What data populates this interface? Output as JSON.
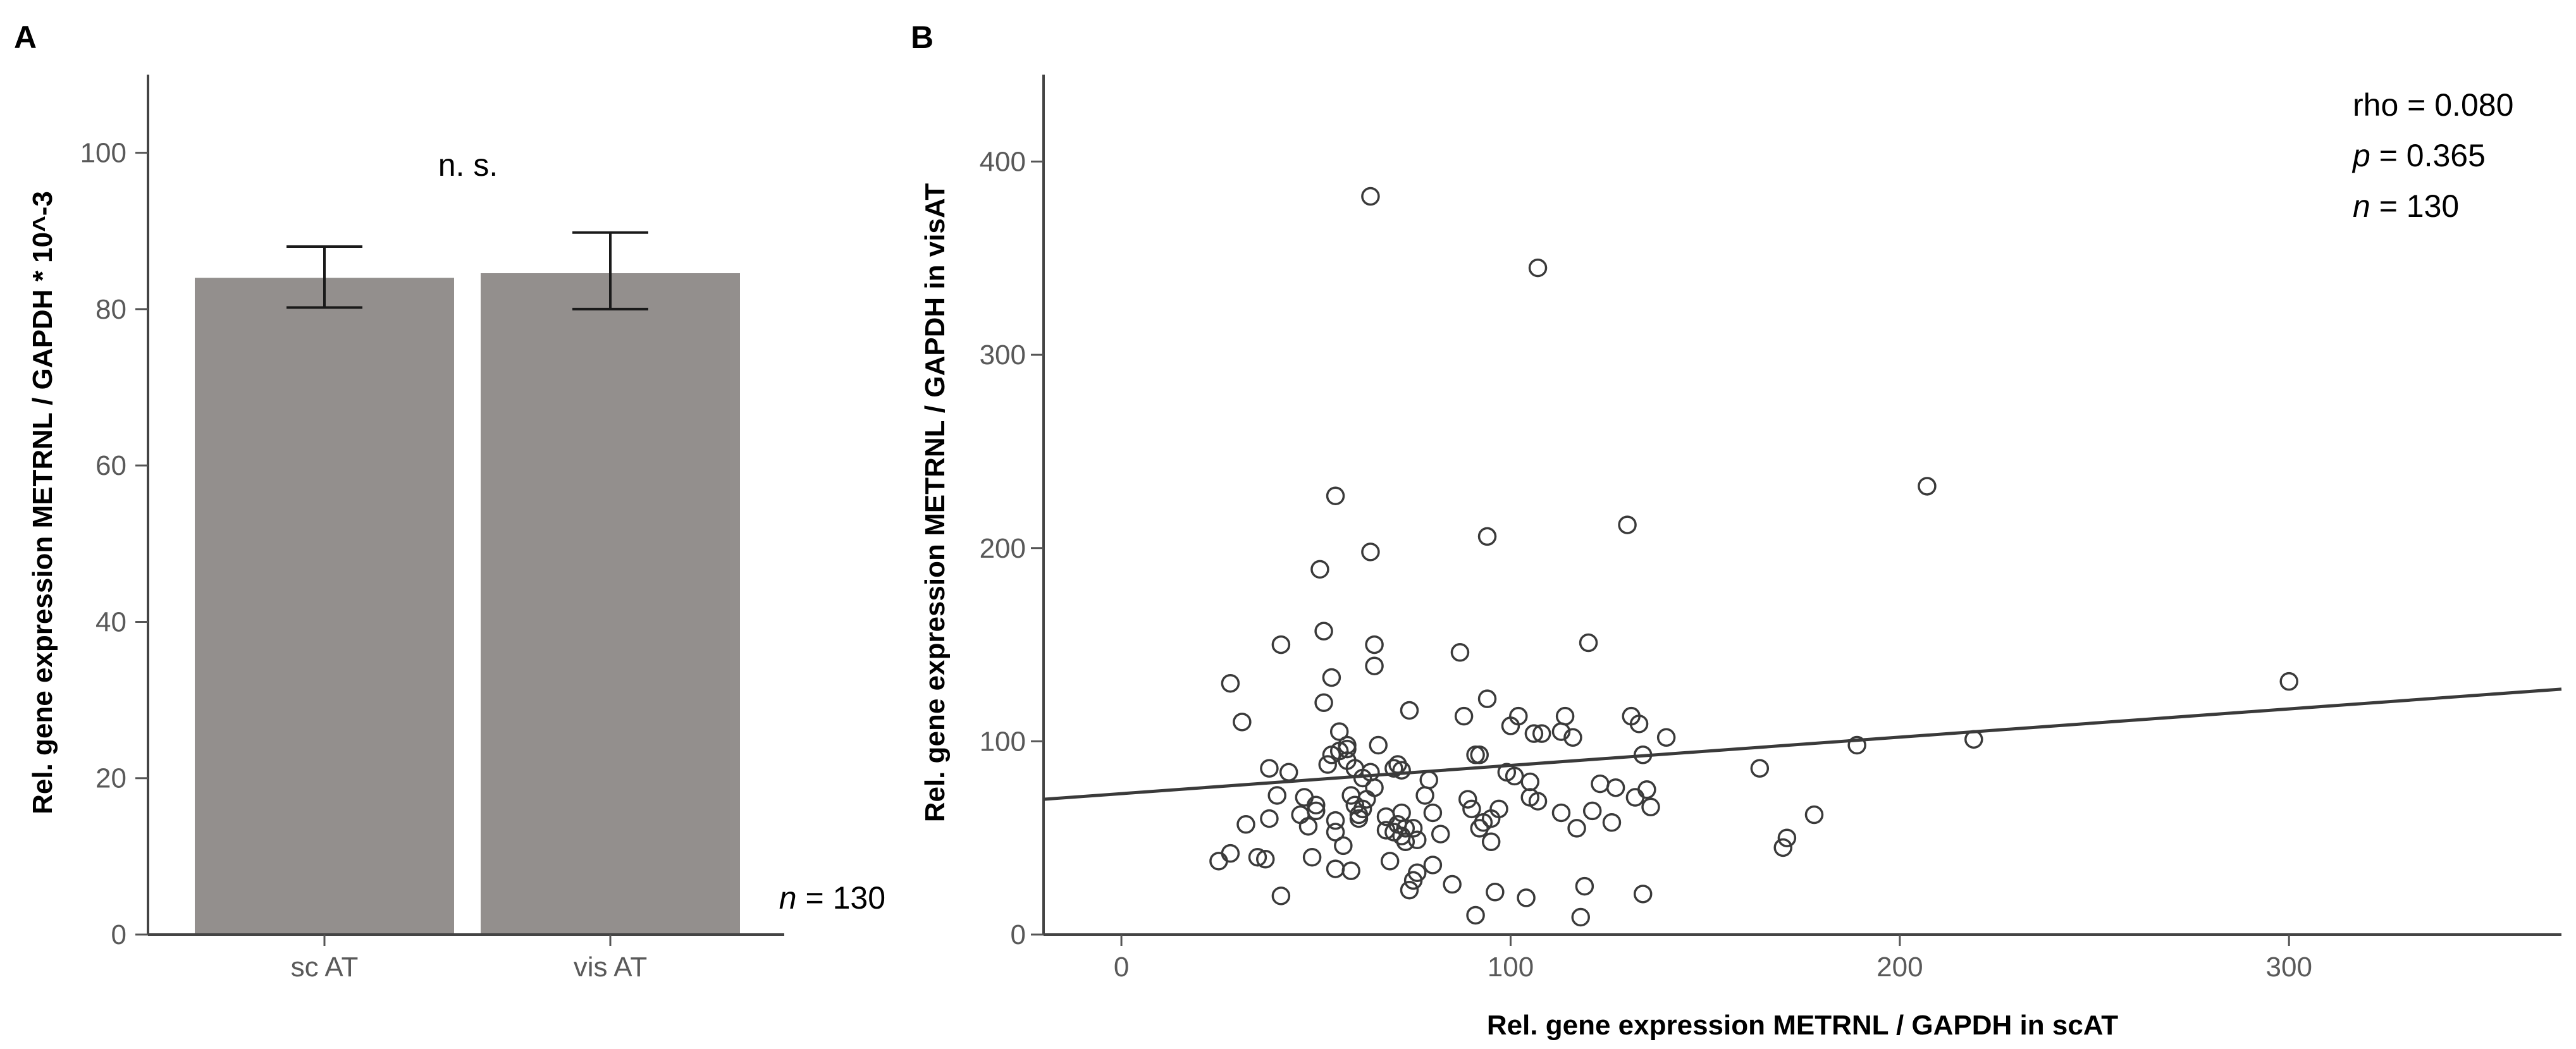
{
  "chart_data": [
    {
      "panel": "A",
      "type": "bar",
      "categories": [
        "sc AT",
        "vis AT"
      ],
      "values": [
        84.0,
        84.6
      ],
      "error_low": [
        80.2,
        80.0
      ],
      "error_high": [
        88.0,
        89.8
      ],
      "ylabel": "Rel. gene expression METRNL / GAPDH * 10^-3",
      "xlabel": "",
      "ylim": [
        0,
        110
      ],
      "yticks": [
        0,
        20,
        40,
        60,
        80,
        100
      ],
      "bar_color": "#938f8d",
      "significance": "n. s.",
      "n_note": {
        "italic": "n",
        "text": " = 130"
      }
    },
    {
      "panel": "B",
      "type": "scatter",
      "xlabel": "Rel. gene expression METRNL / GAPDH in scAT",
      "ylabel": "Rel. gene expression METRNL / GAPDH in visAT",
      "xlim": [
        -20,
        370
      ],
      "ylim": [
        0,
        445
      ],
      "xticks": [
        0,
        100,
        200,
        300
      ],
      "yticks": [
        0,
        100,
        200,
        300,
        400
      ],
      "annotations": [
        {
          "prefix": "",
          "italic": "",
          "text": "rho = 0.080"
        },
        {
          "prefix": "",
          "italic": "p",
          "text": " = 0.365"
        },
        {
          "prefix": "",
          "italic": "n",
          "text": " = 130"
        }
      ],
      "regression": {
        "x": [
          -20,
          370
        ],
        "y": [
          70,
          127
        ]
      },
      "marker_color": "#3a3a3a",
      "line_color": "#3a3a3a",
      "points": [
        [
          25,
          38
        ],
        [
          28,
          42
        ],
        [
          28,
          130
        ],
        [
          31,
          110
        ],
        [
          32,
          57
        ],
        [
          35,
          40
        ],
        [
          37,
          39
        ],
        [
          38,
          60
        ],
        [
          38,
          86
        ],
        [
          40,
          72
        ],
        [
          41,
          20
        ],
        [
          41,
          150
        ],
        [
          43,
          84
        ],
        [
          46,
          62
        ],
        [
          47,
          71
        ],
        [
          48,
          56
        ],
        [
          49,
          40
        ],
        [
          50,
          64
        ],
        [
          50,
          67
        ],
        [
          51,
          189
        ],
        [
          52,
          120
        ],
        [
          52,
          157
        ],
        [
          53,
          88
        ],
        [
          54,
          93
        ],
        [
          54,
          133
        ],
        [
          55,
          59
        ],
        [
          55,
          227
        ],
        [
          55,
          53
        ],
        [
          55,
          34
        ],
        [
          56,
          95
        ],
        [
          56,
          105
        ],
        [
          57,
          46
        ],
        [
          58,
          96
        ],
        [
          58,
          90
        ],
        [
          59,
          33
        ],
        [
          59,
          72
        ],
        [
          60,
          86
        ],
        [
          60,
          67
        ],
        [
          61,
          62
        ],
        [
          61,
          60
        ],
        [
          62,
          81
        ],
        [
          62,
          65
        ],
        [
          63,
          70
        ],
        [
          64,
          84
        ],
        [
          64,
          198
        ],
        [
          64,
          382
        ],
        [
          65,
          76
        ],
        [
          65,
          150
        ],
        [
          65,
          139
        ],
        [
          66,
          98
        ],
        [
          68,
          61
        ],
        [
          69,
          38
        ],
        [
          70,
          86
        ],
        [
          70,
          53
        ],
        [
          71,
          88
        ],
        [
          71,
          57
        ],
        [
          72,
          63
        ],
        [
          72,
          51
        ],
        [
          73,
          48
        ],
        [
          73,
          55
        ],
        [
          74,
          23
        ],
        [
          74,
          116
        ],
        [
          75,
          28
        ],
        [
          75,
          55
        ],
        [
          76,
          49
        ],
        [
          76,
          32
        ],
        [
          78,
          72
        ],
        [
          79,
          80
        ],
        [
          80,
          63
        ],
        [
          80,
          36
        ],
        [
          82,
          52
        ],
        [
          85,
          26
        ],
        [
          87,
          146
        ],
        [
          88,
          113
        ],
        [
          89,
          70
        ],
        [
          90,
          65
        ],
        [
          91,
          10
        ],
        [
          91,
          93
        ],
        [
          92,
          55
        ],
        [
          93,
          58
        ],
        [
          94,
          122
        ],
        [
          94,
          206
        ],
        [
          95,
          48
        ],
        [
          95,
          60
        ],
        [
          97,
          65
        ],
        [
          99,
          84
        ],
        [
          100,
          108
        ],
        [
          101,
          82
        ],
        [
          102,
          113
        ],
        [
          104,
          19
        ],
        [
          105,
          79
        ],
        [
          105,
          71
        ],
        [
          106,
          104
        ],
        [
          107,
          345
        ],
        [
          107,
          69
        ],
        [
          113,
          63
        ],
        [
          114,
          113
        ],
        [
          116,
          102
        ],
        [
          117,
          55
        ],
        [
          118,
          9
        ],
        [
          119,
          25
        ],
        [
          120,
          151
        ],
        [
          121,
          64
        ],
        [
          123,
          78
        ],
        [
          126,
          58
        ],
        [
          127,
          76
        ],
        [
          130,
          212
        ],
        [
          131,
          113
        ],
        [
          132,
          71
        ],
        [
          133,
          109
        ],
        [
          134,
          21
        ],
        [
          134,
          93
        ],
        [
          135,
          75
        ],
        [
          136,
          66
        ],
        [
          140,
          102
        ],
        [
          164,
          86
        ],
        [
          170,
          45
        ],
        [
          171,
          50
        ],
        [
          178,
          62
        ],
        [
          189,
          98
        ],
        [
          207,
          232
        ],
        [
          219,
          101
        ],
        [
          300,
          131
        ],
        [
          68,
          54
        ],
        [
          72,
          85
        ],
        [
          58,
          98
        ],
        [
          108,
          104
        ],
        [
          113,
          105
        ],
        [
          92,
          93
        ],
        [
          96,
          22
        ]
      ]
    }
  ],
  "panel_labels": {
    "a": "A",
    "b": "B"
  }
}
